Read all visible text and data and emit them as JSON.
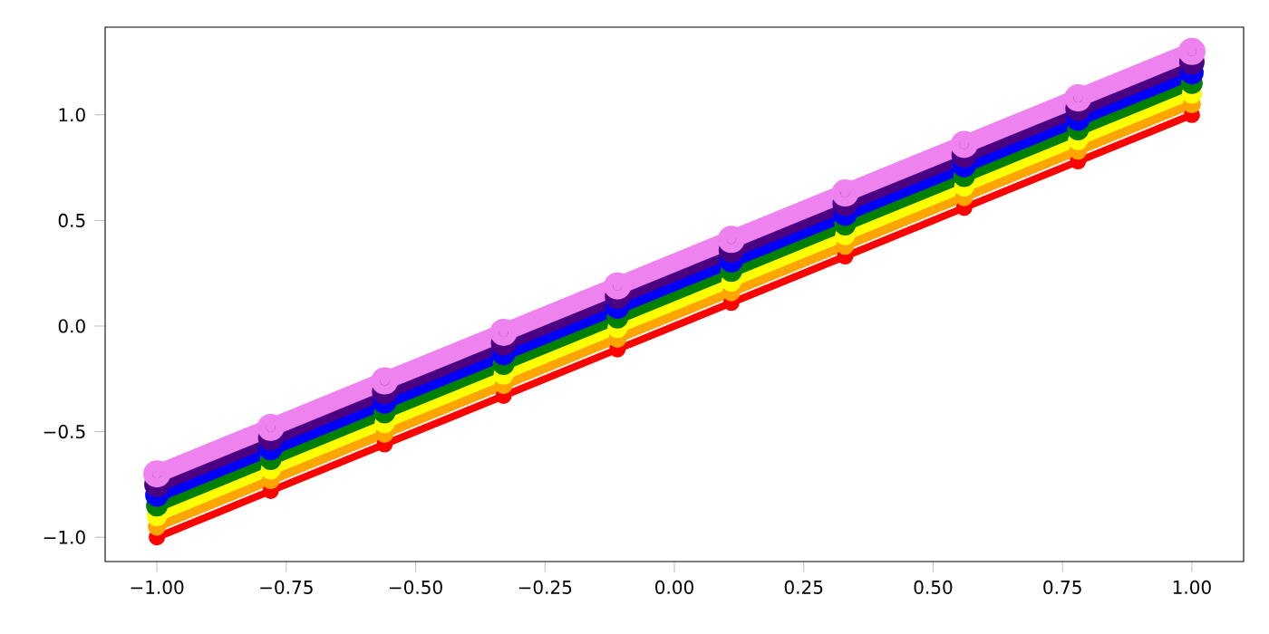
{
  "chart_data": {
    "type": "line",
    "marker": "circle",
    "line_style": "solid",
    "grid": false,
    "legend": false,
    "x": [
      -1,
      -0.78,
      -0.56,
      -0.33,
      -0.11,
      0.11,
      0.33,
      0.56,
      0.78,
      1
    ],
    "xlim": [
      -1.1,
      1.1
    ],
    "ylim": [
      -1.115,
      1.415
    ],
    "xticks": [
      {
        "value": -1,
        "label": "−1.00"
      },
      {
        "value": -0.75,
        "label": "−0.75"
      },
      {
        "value": -0.5,
        "label": "−0.50"
      },
      {
        "value": -0.25,
        "label": "−0.25"
      },
      {
        "value": 0,
        "label": "0.00"
      },
      {
        "value": 0.25,
        "label": "0.25"
      },
      {
        "value": 0.5,
        "label": "0.50"
      },
      {
        "value": 0.75,
        "label": "0.75"
      },
      {
        "value": 1,
        "label": "1.00"
      }
    ],
    "yticks": [
      {
        "value": -1,
        "label": "−1.0"
      },
      {
        "value": -0.5,
        "label": "−0.5"
      },
      {
        "value": 0,
        "label": "0.0"
      },
      {
        "value": 0.5,
        "label": "0.5"
      },
      {
        "value": 1,
        "label": "1.0"
      }
    ],
    "series": [
      {
        "color": "#ff0000",
        "values": [
          -1,
          -0.78,
          -0.56,
          -0.33,
          -0.11,
          0.11,
          0.33,
          0.56,
          0.78,
          1
        ]
      },
      {
        "color": "#ffa500",
        "values": [
          -0.95,
          -0.73,
          -0.51,
          -0.28,
          -0.06,
          0.16,
          0.38,
          0.61,
          0.83,
          1.05
        ]
      },
      {
        "color": "#ffff00",
        "values": [
          -0.9,
          -0.68,
          -0.46,
          -0.23,
          -0.01,
          0.21,
          0.43,
          0.66,
          0.88,
          1.1
        ]
      },
      {
        "color": "#008000",
        "values": [
          -0.85,
          -0.63,
          -0.41,
          -0.18,
          0.04,
          0.26,
          0.48,
          0.71,
          0.93,
          1.15
        ]
      },
      {
        "color": "#0000ff",
        "values": [
          -0.8,
          -0.58,
          -0.36,
          -0.13,
          0.09,
          0.31,
          0.53,
          0.76,
          0.98,
          1.2
        ]
      },
      {
        "color": "#4b0082",
        "values": [
          -0.75,
          -0.53,
          -0.31,
          -0.08,
          0.14,
          0.36,
          0.58,
          0.81,
          1.03,
          1.25
        ]
      },
      {
        "color": "#ee82ee",
        "values": [
          -0.7,
          -0.48,
          -0.26,
          -0.03,
          0.19,
          0.41,
          0.63,
          0.86,
          1.08,
          1.3
        ]
      }
    ]
  }
}
